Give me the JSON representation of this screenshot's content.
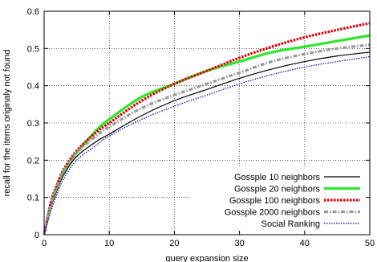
{
  "chart_data": {
    "type": "line",
    "title": "",
    "xlabel": "query expansion size",
    "ylabel": "recall for the items originaly not found",
    "xlim": [
      0,
      50
    ],
    "ylim": [
      0,
      0.6
    ],
    "x_ticks": [
      "0",
      "10",
      "20",
      "30",
      "40",
      "50"
    ],
    "y_ticks": [
      "0",
      "0.1",
      "0.2",
      "0.3",
      "0.4",
      "0.5",
      "0.6"
    ],
    "grid": true,
    "legend_position": "bottom-right",
    "x": [
      0,
      1,
      2,
      3,
      5,
      8,
      10,
      15,
      20,
      25,
      30,
      35,
      40,
      45,
      50
    ],
    "series": [
      {
        "name": "Gossple 10 neighbors",
        "color": "#000000",
        "style": "solid",
        "width": 1.2,
        "values": [
          0,
          0.07,
          0.12,
          0.16,
          0.21,
          0.25,
          0.27,
          0.32,
          0.36,
          0.39,
          0.42,
          0.445,
          0.465,
          0.48,
          0.49
        ]
      },
      {
        "name": "Gossple 20 neighbors",
        "color": "#2ee82e",
        "style": "solid",
        "width": 3.2,
        "values": [
          0,
          0.08,
          0.13,
          0.17,
          0.22,
          0.28,
          0.31,
          0.37,
          0.405,
          0.44,
          0.465,
          0.49,
          0.505,
          0.52,
          0.535
        ]
      },
      {
        "name": "Gossple 100 neighbors",
        "color": "#e00000",
        "style": "dotted",
        "width": 3.2,
        "values": [
          0,
          0.085,
          0.135,
          0.175,
          0.225,
          0.275,
          0.3,
          0.36,
          0.405,
          0.44,
          0.475,
          0.505,
          0.53,
          0.55,
          0.568
        ]
      },
      {
        "name": "Gossple 2000 neighbors",
        "color": "#9a9a9a",
        "style": "dashdot",
        "width": 3.2,
        "values": [
          0,
          0.08,
          0.13,
          0.17,
          0.22,
          0.265,
          0.29,
          0.34,
          0.375,
          0.405,
          0.435,
          0.465,
          0.485,
          0.5,
          0.51
        ]
      },
      {
        "name": "Social Ranking",
        "color": "#0000cc",
        "style": "dotted",
        "width": 1.2,
        "values": [
          0,
          0.06,
          0.11,
          0.15,
          0.2,
          0.24,
          0.265,
          0.31,
          0.345,
          0.375,
          0.405,
          0.43,
          0.45,
          0.465,
          0.478
        ]
      }
    ]
  }
}
